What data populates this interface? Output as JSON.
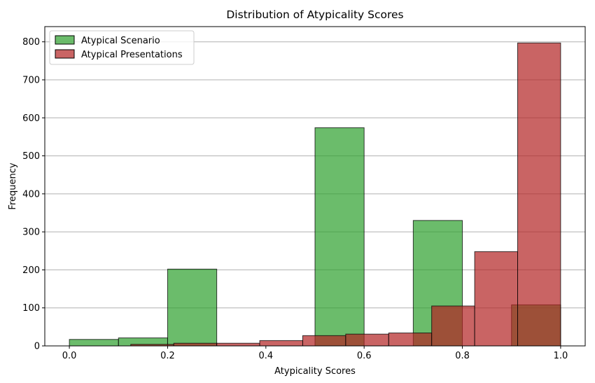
{
  "chart_data": {
    "type": "bar",
    "title": "Distribution of Atypicality Scores",
    "xlabel": "Atypicality Scores",
    "ylabel": "Frequency",
    "xlim": [
      -0.05,
      1.05
    ],
    "ylim": [
      0,
      840
    ],
    "xticks": [
      "0.0",
      "0.2",
      "0.4",
      "0.6",
      "0.8",
      "1.0"
    ],
    "yticks": [
      "0",
      "100",
      "200",
      "300",
      "400",
      "500",
      "600",
      "700",
      "800"
    ],
    "grid": "y",
    "legend_position": "top-left",
    "series": [
      {
        "name": "Atypical Scenario",
        "color": "#2ca02c",
        "bins": [
          {
            "x0": 0.0,
            "x1": 0.1,
            "value": 17
          },
          {
            "x0": 0.1,
            "x1": 0.2,
            "value": 21
          },
          {
            "x0": 0.2,
            "x1": 0.3,
            "value": 202
          },
          {
            "x0": 0.3,
            "x1": 0.4,
            "value": 0
          },
          {
            "x0": 0.4,
            "x1": 0.5,
            "value": 0
          },
          {
            "x0": 0.5,
            "x1": 0.6,
            "value": 574
          },
          {
            "x0": 0.6,
            "x1": 0.7,
            "value": 0
          },
          {
            "x0": 0.7,
            "x1": 0.8,
            "value": 330
          },
          {
            "x0": 0.8,
            "x1": 0.9,
            "value": 0
          },
          {
            "x0": 0.9,
            "x1": 1.0,
            "value": 108
          }
        ]
      },
      {
        "name": "Atypical Presentations",
        "color": "#b22222",
        "bins": [
          {
            "x0": 0.125,
            "x1": 0.2125,
            "value": 4
          },
          {
            "x0": 0.2125,
            "x1": 0.3,
            "value": 7
          },
          {
            "x0": 0.3,
            "x1": 0.3875,
            "value": 7
          },
          {
            "x0": 0.3875,
            "x1": 0.475,
            "value": 14
          },
          {
            "x0": 0.475,
            "x1": 0.5625,
            "value": 27
          },
          {
            "x0": 0.5625,
            "x1": 0.65,
            "value": 31
          },
          {
            "x0": 0.65,
            "x1": 0.7375,
            "value": 34
          },
          {
            "x0": 0.7375,
            "x1": 0.825,
            "value": 105
          },
          {
            "x0": 0.825,
            "x1": 0.9125,
            "value": 248
          },
          {
            "x0": 0.9125,
            "x1": 1.0,
            "value": 797
          }
        ]
      }
    ]
  }
}
